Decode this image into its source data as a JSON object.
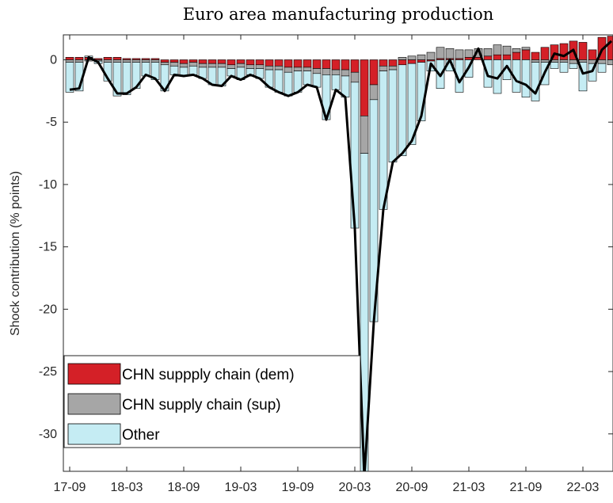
{
  "chart_data": {
    "type": "bar",
    "title": "Euro area manufacturing production",
    "y_label": "Shock contribution (% points)",
    "categories": [
      "17-09",
      null,
      null,
      null,
      null,
      null,
      "18-03",
      null,
      null,
      null,
      null,
      null,
      "18-09",
      null,
      null,
      null,
      null,
      null,
      "19-03",
      null,
      null,
      null,
      null,
      null,
      "19-09",
      null,
      null,
      null,
      null,
      null,
      "20-03",
      null,
      null,
      null,
      null,
      null,
      "20-09",
      null,
      null,
      null,
      null,
      null,
      "21-03",
      null,
      null,
      null,
      null,
      null,
      "21-09",
      null,
      null,
      null,
      null,
      null,
      "22-03",
      null,
      null,
      null
    ],
    "stacked": true,
    "series": [
      {
        "name": "CHN suppply chain (dem)",
        "color": "#d42027",
        "values": [
          0.2,
          0.2,
          0.2,
          0.1,
          0.2,
          0.2,
          0.1,
          0.1,
          0.1,
          0.1,
          -0.2,
          -0.2,
          -0.3,
          -0.2,
          -0.3,
          -0.3,
          -0.3,
          -0.4,
          -0.3,
          -0.4,
          -0.4,
          -0.5,
          -0.5,
          -0.6,
          -0.6,
          -0.6,
          -0.7,
          -0.7,
          -0.8,
          -0.8,
          -1.0,
          -4.5,
          -2.0,
          -0.5,
          -0.5,
          -0.4,
          -0.3,
          -0.2,
          -0.1,
          0.1,
          0.1,
          0.1,
          0.2,
          0.2,
          0.3,
          0.4,
          0.4,
          0.6,
          0.8,
          0.6,
          1.0,
          1.2,
          1.3,
          1.5,
          1.4,
          0.8,
          1.8,
          1.9
        ]
      },
      {
        "name": "CHN supply chain (sup)",
        "color": "#a6a6a6",
        "values": [
          -0.2,
          -0.2,
          -0.1,
          -0.1,
          -0.2,
          -0.2,
          -0.2,
          -0.2,
          -0.2,
          -0.2,
          -0.2,
          -0.3,
          -0.3,
          -0.3,
          -0.3,
          -0.3,
          -0.3,
          -0.3,
          -0.3,
          -0.3,
          -0.3,
          -0.3,
          -0.3,
          -0.4,
          -0.3,
          -0.3,
          -0.4,
          -0.5,
          -0.4,
          -0.5,
          -0.8,
          -3.0,
          -1.2,
          -0.4,
          -0.3,
          0.2,
          0.3,
          0.4,
          0.6,
          0.9,
          0.8,
          0.7,
          0.6,
          0.7,
          0.6,
          0.8,
          0.7,
          0.3,
          0.2,
          -0.2,
          -0.2,
          -0.2,
          -0.2,
          -0.3,
          -0.2,
          -0.3,
          -0.3,
          -0.4
        ]
      },
      {
        "name": "Other",
        "color": "#c5ecf3",
        "values": [
          -2.4,
          -2.3,
          0.1,
          -0.2,
          -1.5,
          -2.7,
          -2.6,
          -2.1,
          -1.1,
          -1.4,
          -2.1,
          -0.7,
          -0.7,
          -0.7,
          -0.9,
          -1.4,
          -1.5,
          -0.6,
          -1.0,
          -0.5,
          -0.8,
          -1.4,
          -1.8,
          -1.9,
          -1.7,
          -1.1,
          -1.1,
          -3.6,
          -1.2,
          -1.7,
          -11.7,
          -26.0,
          -17.8,
          -11.1,
          -7.4,
          -7.3,
          -6.5,
          -4.7,
          -0.8,
          -2.3,
          -0.9,
          -2.6,
          -1.4,
          0.0,
          -2.2,
          -2.7,
          -1.6,
          -2.6,
          -3.0,
          -3.1,
          -1.8,
          -0.5,
          -0.8,
          -0.4,
          -2.3,
          -1.4,
          -0.7,
          0.0
        ]
      }
    ],
    "total": {
      "type": "line",
      "color": "#000000",
      "values": [
        -2.4,
        -2.3,
        0.2,
        -0.2,
        -1.5,
        -2.7,
        -2.7,
        -2.2,
        -1.2,
        -1.5,
        -2.5,
        -1.2,
        -1.3,
        -1.2,
        -1.5,
        -2.0,
        -2.1,
        -1.3,
        -1.6,
        -1.2,
        -1.5,
        -2.2,
        -2.6,
        -2.9,
        -2.6,
        -2.0,
        -2.2,
        -4.8,
        -2.4,
        -3.0,
        -13.5,
        -33.5,
        -21.0,
        -12.0,
        -8.2,
        -7.5,
        -6.5,
        -4.5,
        -0.3,
        -1.3,
        0.0,
        -1.8,
        -0.6,
        0.9,
        -1.3,
        -1.5,
        -0.5,
        -1.7,
        -2.0,
        -2.7,
        -1.0,
        0.5,
        0.3,
        0.8,
        -1.1,
        -0.9,
        0.8,
        1.5
      ]
    },
    "ylim": [
      -33,
      2
    ],
    "yticks": [
      -30,
      -25,
      -20,
      -15,
      -10,
      -5,
      0
    ],
    "legend": "lower left"
  }
}
